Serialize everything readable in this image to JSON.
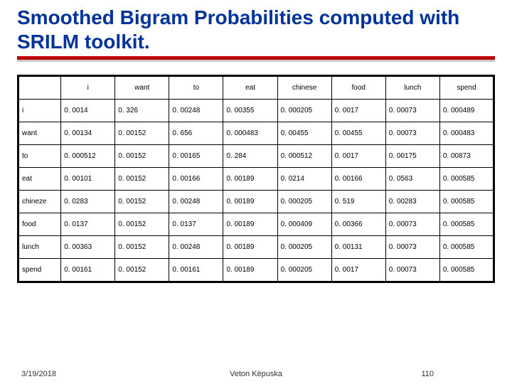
{
  "title": "Smoothed Bigram Probabilities computed with SRILM toolkit.",
  "table": {
    "type": "table",
    "border_color": "#000000",
    "outer_border_width": 3,
    "inner_border_width": 1,
    "cell_fontsize": 10,
    "header_align": "center",
    "body_align": "left",
    "columns": [
      "",
      "i",
      "want",
      "to",
      "eat",
      "chinese",
      "food",
      "lunch",
      "spend"
    ],
    "row_labels": [
      "i",
      "want",
      "to",
      "eat",
      "chineze",
      "food",
      "lunch",
      "spend"
    ],
    "rows": [
      [
        "0. 0014",
        "0. 326",
        "0. 00248",
        "0. 00355",
        "0. 000205",
        "0. 0017",
        "0. 00073",
        "0. 000489"
      ],
      [
        "0. 00134",
        "0. 00152",
        "0. 656",
        "0. 000483",
        "0. 00455",
        "0. 00455",
        "0. 00073",
        "0. 000483"
      ],
      [
        "0. 000512",
        "0. 00152",
        "0. 00165",
        "0. 284",
        "0. 000512",
        "0. 0017",
        "0. 00175",
        "0. 00873"
      ],
      [
        "0. 00101",
        "0. 00152",
        "0. 00166",
        "0. 00189",
        "0. 0214",
        "0. 00166",
        "0. 0563",
        "0. 000585"
      ],
      [
        "0. 0283",
        "0. 00152",
        "0. 00248",
        "0. 00189",
        "0. 000205",
        "0. 519",
        "0. 00283",
        "0. 000585"
      ],
      [
        "0. 0137",
        "0. 00152",
        "0. 0137",
        "0. 00189",
        "0. 000409",
        "0. 00366",
        "0. 00073",
        "0. 000585"
      ],
      [
        "0. 00363",
        "0. 00152",
        "0. 00248",
        "0. 00189",
        "0. 000205",
        "0. 00131",
        "0. 00073",
        "0. 000585"
      ],
      [
        "0. 00161",
        "0. 00152",
        "0. 00161",
        "0. 00189",
        "0. 000205",
        "0. 0017",
        "0. 00073",
        "0. 000585"
      ]
    ]
  },
  "footer": {
    "date": "3/19/2018",
    "author": "Veton Këpuska",
    "page": "110"
  },
  "colors": {
    "title_color": "#003399",
    "underline_color": "#b90000",
    "background": "#ffffff",
    "text": "#000000"
  }
}
